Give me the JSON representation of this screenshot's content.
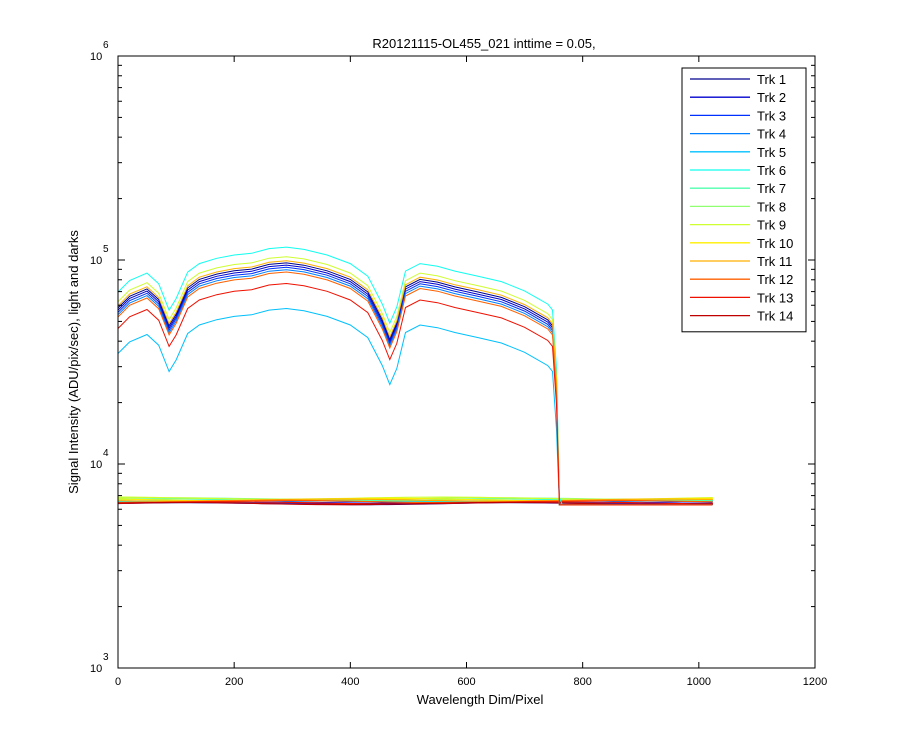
{
  "chart_data": {
    "type": "line",
    "title": "R20121115-OL455_021 inttime = 0.05,",
    "xlabel": "Wavelength Dim/Pixel",
    "ylabel": "Signal Intensity (ADU/pix/sec), light and darks",
    "xlim": [
      0,
      1200
    ],
    "ylim": [
      1000,
      1000000
    ],
    "yscale": "log",
    "grid": false,
    "legend_position": "top-right",
    "x_ticks": [
      0,
      200,
      400,
      600,
      800,
      1000,
      1200
    ],
    "x_tick_labels": [
      "0",
      "200",
      "400",
      "600",
      "800",
      "1000",
      "1200"
    ],
    "y_ticks": [
      1000,
      10000,
      100000,
      1000000
    ],
    "y_tick_labels": [
      {
        "base": "10",
        "exp": "3"
      },
      {
        "base": "10",
        "exp": "4"
      },
      {
        "base": "10",
        "exp": "5"
      },
      {
        "base": "10",
        "exp": "6"
      }
    ],
    "light_profile": {
      "x": [
        0,
        20,
        50,
        70,
        88,
        100,
        120,
        140,
        170,
        200,
        230,
        260,
        290,
        320,
        360,
        400,
        430,
        455,
        468,
        480,
        495,
        520,
        550,
        580,
        620,
        660,
        700,
        740,
        748,
        755,
        760,
        765,
        772,
        780,
        800,
        820,
        1023
      ],
      "y": [
        0.71,
        0.81,
        0.88,
        0.78,
        0.58,
        0.66,
        0.89,
        0.98,
        1.04,
        1.08,
        1.1,
        1.16,
        1.18,
        1.15,
        1.08,
        0.98,
        0.85,
        0.62,
        0.5,
        0.6,
        0.9,
        0.98,
        0.95,
        0.9,
        0.85,
        0.8,
        0.72,
        0.62,
        0.58,
        0.3,
        0.07,
        0.035,
        0.017,
        0.0095,
        0.0068,
        0.0065,
        0.0065
      ]
    },
    "series": [
      {
        "name": "Trk 1",
        "color": "#00008f",
        "light": true,
        "scale": 82000,
        "dark": 6400
      },
      {
        "name": "Trk 2",
        "color": "#0000cf",
        "light": true,
        "scale": 80000,
        "dark": 6450
      },
      {
        "name": "Trk 3",
        "color": "#0030ff",
        "light": true,
        "scale": 78000,
        "dark": 6500
      },
      {
        "name": "Trk 4",
        "color": "#0080ff",
        "light": true,
        "scale": 76000,
        "dark": 6550
      },
      {
        "name": "Trk 5",
        "color": "#00c0ff",
        "light": true,
        "scale": 49000,
        "dark": 6600
      },
      {
        "name": "Trk 6",
        "color": "#10ffef",
        "light": true,
        "scale": 98000,
        "dark": 6650
      },
      {
        "name": "Trk 7",
        "color": "#50ffaf",
        "light": false,
        "scale": 0,
        "dark": 6700
      },
      {
        "name": "Trk 8",
        "color": "#90ff70",
        "light": false,
        "scale": 0,
        "dark": 6750
      },
      {
        "name": "Trk 9",
        "color": "#cfff30",
        "light": true,
        "scale": 88000,
        "dark": 6800
      },
      {
        "name": "Trk 10",
        "color": "#ffef00",
        "light": false,
        "scale": 0,
        "dark": 6700
      },
      {
        "name": "Trk 11",
        "color": "#ffaf00",
        "light": true,
        "scale": 84000,
        "dark": 6650
      },
      {
        "name": "Trk 12",
        "color": "#ff6000",
        "light": true,
        "scale": 74000,
        "dark": 6550
      },
      {
        "name": "Trk 13",
        "color": "#ef1000",
        "light": true,
        "scale": 65000,
        "dark": 6450
      },
      {
        "name": "Trk 14",
        "color": "#bf0000",
        "light": false,
        "scale": 0,
        "dark": 6400
      }
    ]
  }
}
